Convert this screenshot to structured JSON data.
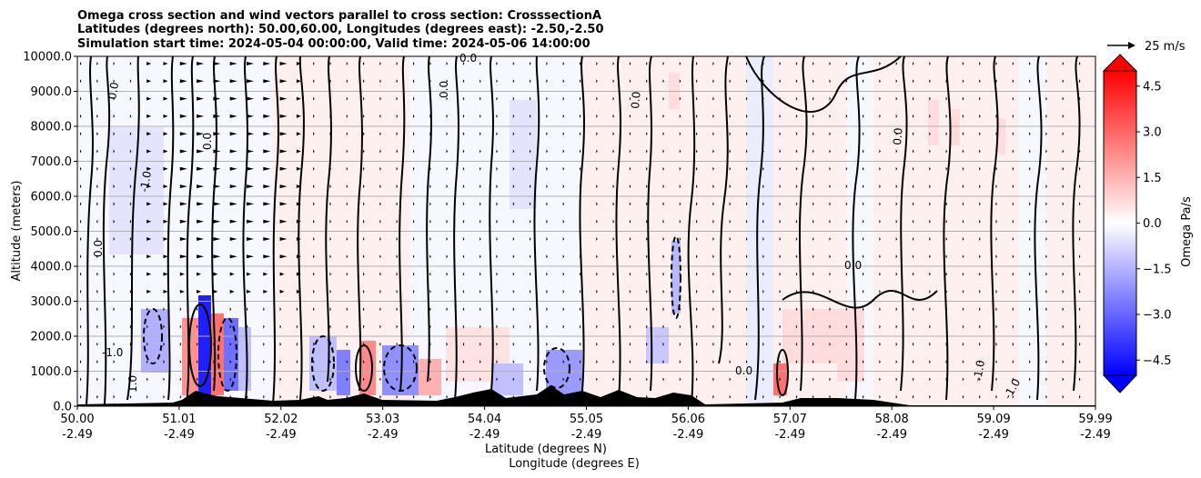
{
  "chart_data": {
    "type": "heatmap",
    "title_lines": [
      "Omega cross section and wind vectors parallel to cross section: CrosssectionA",
      "Latitudes (degrees north): 50.00,60.00, Longitudes (degrees east): -2.50,-2.50",
      "Simulation start time: 2024-05-04 00:00:00, Valid time: 2024-05-06 14:00:00"
    ],
    "ylabel": "Altitude (meters)",
    "xlabel_lat": "Latitude (degrees N)",
    "xlabel_lon": "Longitude (degrees E)",
    "ylim": [
      0,
      10000
    ],
    "y_ticks": [
      "0.0",
      "1000.0",
      "2000.0",
      "3000.0",
      "4000.0",
      "5000.0",
      "6000.0",
      "7000.0",
      "8000.0",
      "9000.0",
      "10000.0"
    ],
    "x_ticks_lat": [
      "50.00",
      "51.01",
      "52.02",
      "53.03",
      "54.04",
      "55.05",
      "56.06",
      "57.07",
      "58.08",
      "59.09",
      "59.99"
    ],
    "x_ticks_lon": [
      "-2.49",
      "-2.49",
      "-2.49",
      "-2.49",
      "-2.49",
      "-2.49",
      "-2.49",
      "-2.49",
      "-2.49",
      "-2.49",
      "-2.49"
    ],
    "grid": "horizontal",
    "colorbar": {
      "label": "Omega Pa/s",
      "range": [
        -5.0,
        5.0
      ],
      "ticks": [
        "4.5",
        "3.0",
        "1.5",
        "0.0",
        "−1.5",
        "−3.0",
        "−4.5"
      ],
      "tick_values": [
        4.5,
        3.0,
        1.5,
        0.0,
        -1.5,
        -3.0,
        -4.5
      ],
      "colormap": "bwr",
      "extend": "both"
    },
    "quiver_key": "25 m/s",
    "contour_label": "0.0",
    "contour_labels_other": [
      "-1.0",
      "1.0"
    ],
    "colors": {
      "positive": "#ff0000",
      "negative": "#0000ff",
      "contour": "#000000",
      "terrain": "#000000",
      "grid": "#b0b0b0"
    }
  }
}
